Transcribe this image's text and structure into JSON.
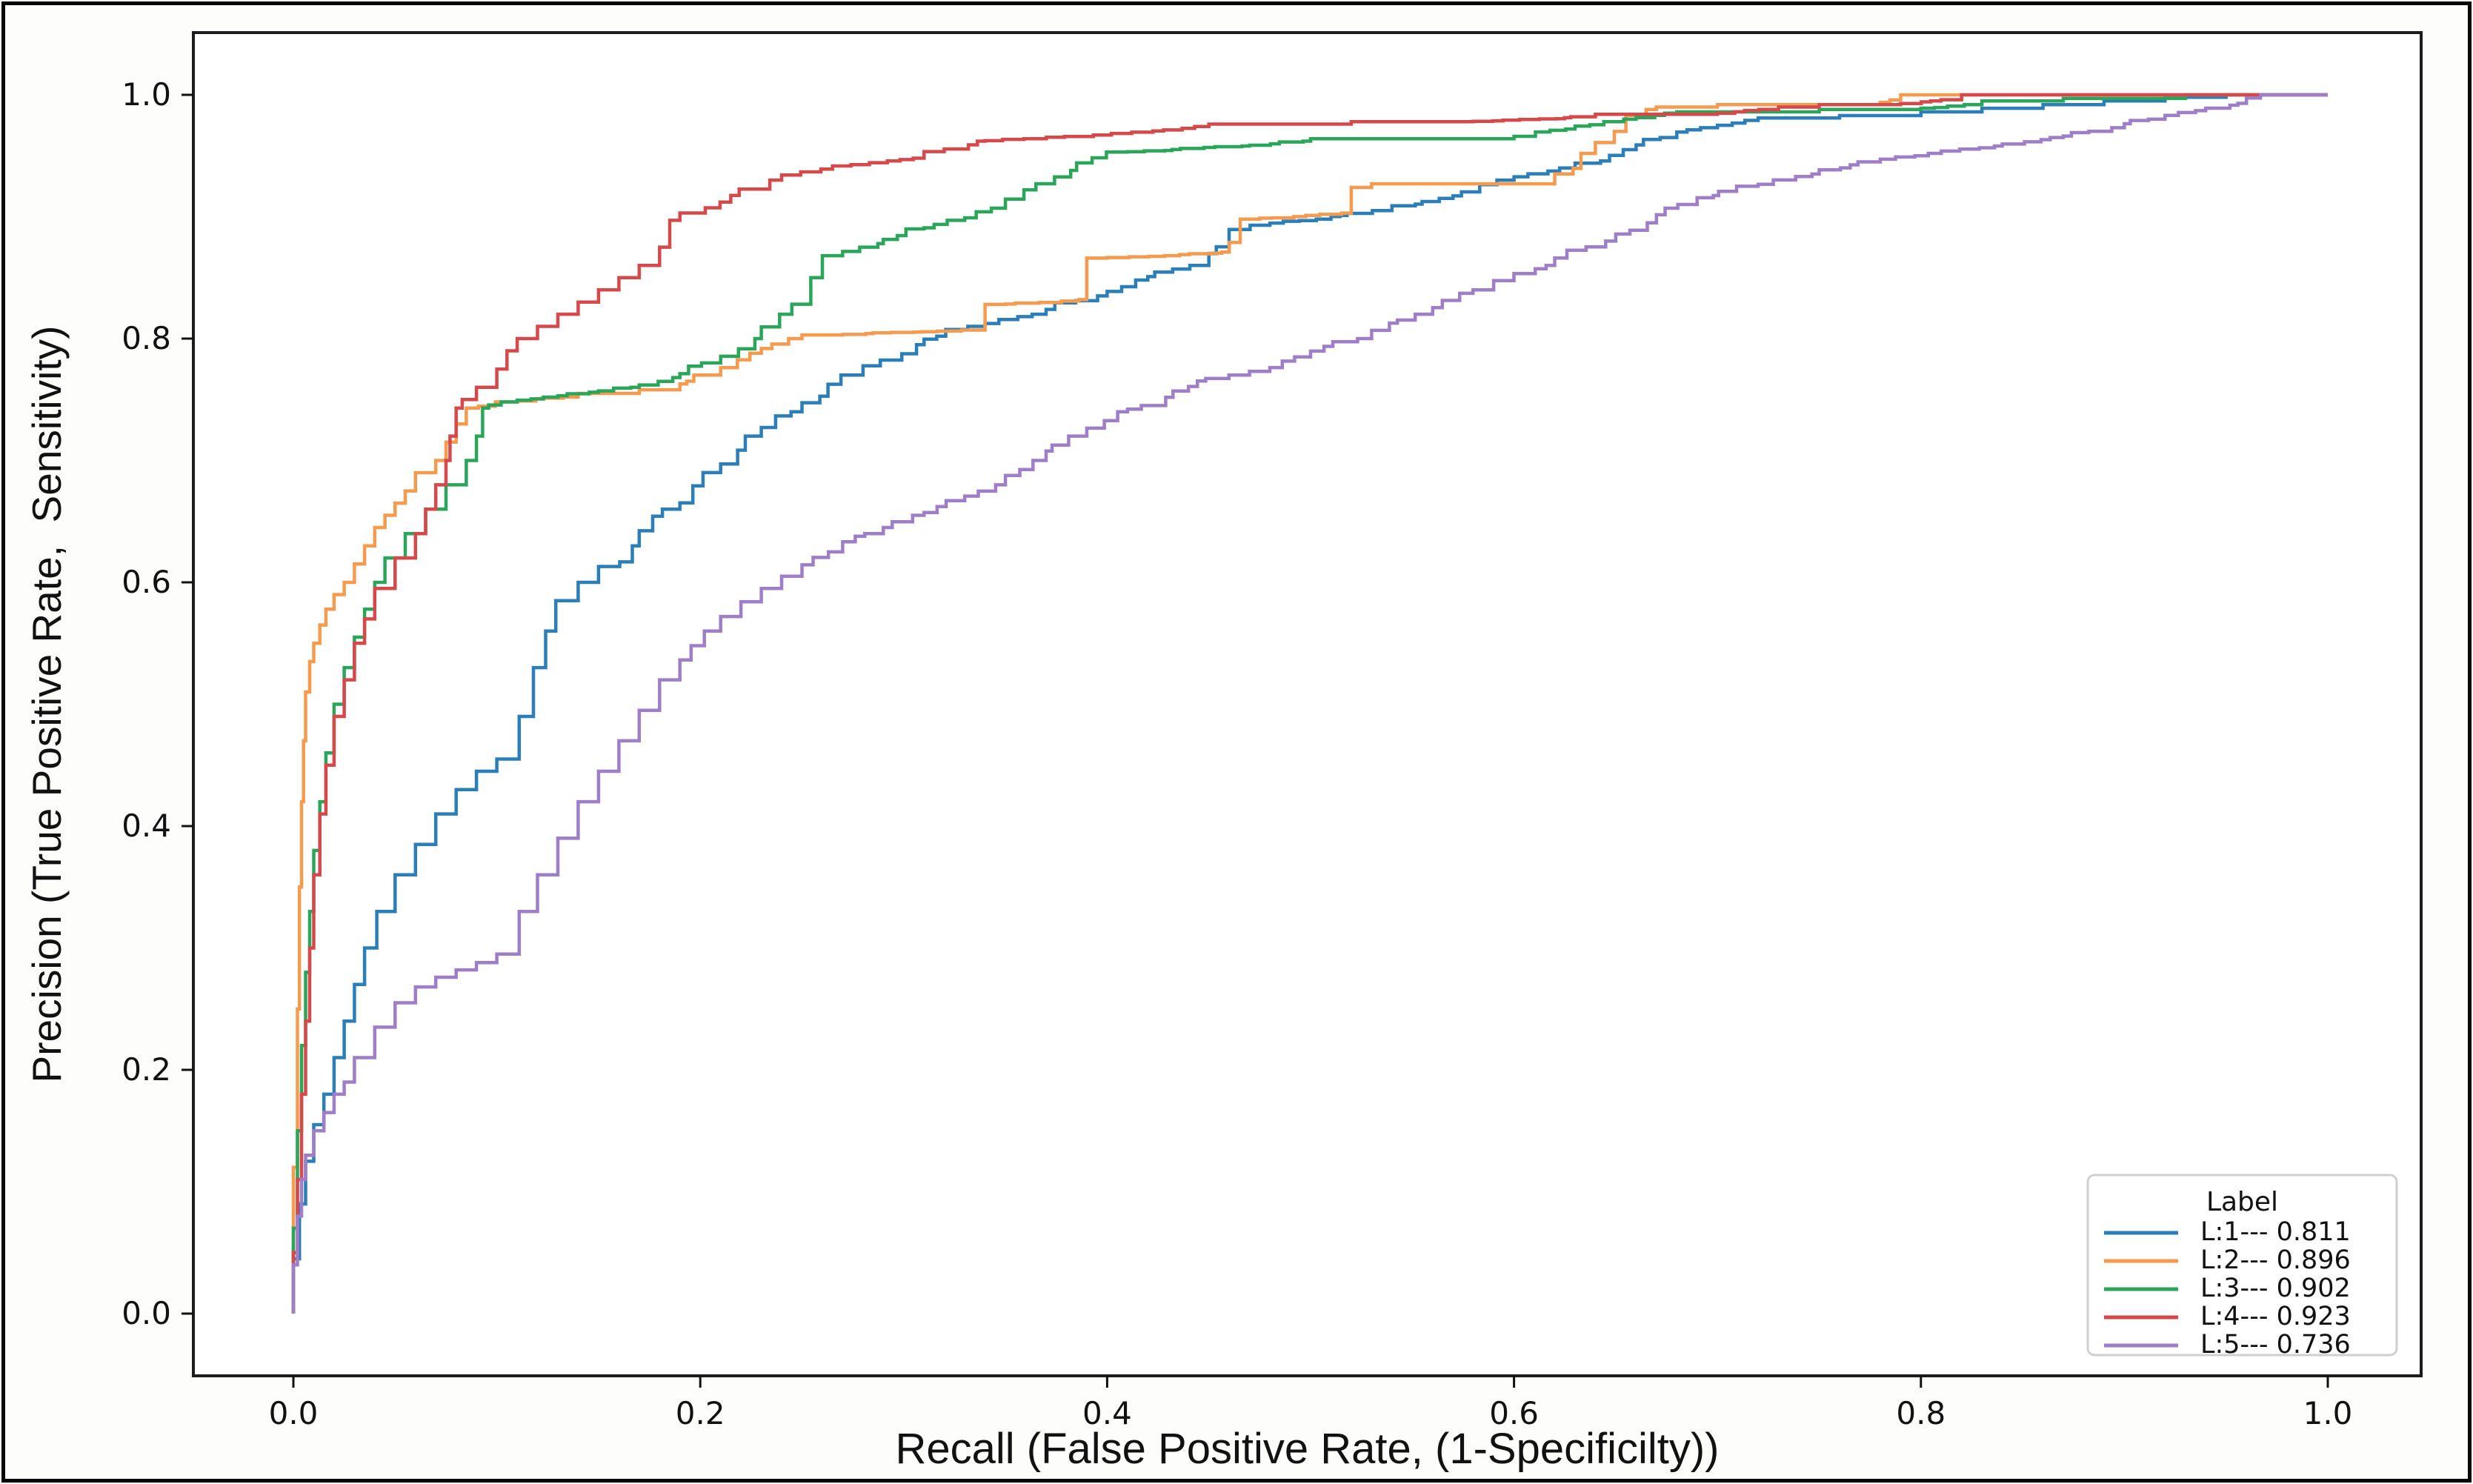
{
  "figure": {
    "background": "#fdfdfc",
    "border_color": "#060606",
    "spine_color": "#1c1c1c",
    "tick_color": "#111111",
    "text_color": "#111111"
  },
  "chart_data": {
    "type": "line",
    "subtype": "roc-step-curves",
    "title": "",
    "xlabel": "Recall (False Positive Rate, (1-Specificilty))",
    "ylabel": "Precision (True Positive Rate,  Sensitivity)",
    "xlim": [
      -0.049,
      1.046
    ],
    "ylim": [
      -0.051,
      1.051
    ],
    "x_ticks": [
      0.0,
      0.2,
      0.4,
      0.6,
      0.8,
      1.0
    ],
    "y_ticks": [
      0.0,
      0.2,
      0.4,
      0.6,
      0.8,
      1.0
    ],
    "grid": false,
    "legend": {
      "title": "Label",
      "position": "lower right",
      "border_color": "#cfcfcf",
      "background": "#ffffff"
    },
    "series": [
      {
        "name": "L:1",
        "auc": 0.811,
        "legend_label": "L:1--- 0.811",
        "color": "#2b7eb8",
        "points": [
          [
            0,
            0
          ],
          [
            0.003,
            0.045
          ],
          [
            0.006,
            0.09
          ],
          [
            0.01,
            0.125
          ],
          [
            0.015,
            0.155
          ],
          [
            0.02,
            0.18
          ],
          [
            0.025,
            0.21
          ],
          [
            0.03,
            0.24
          ],
          [
            0.035,
            0.27
          ],
          [
            0.041,
            0.3
          ],
          [
            0.05,
            0.33
          ],
          [
            0.06,
            0.36
          ],
          [
            0.07,
            0.385
          ],
          [
            0.08,
            0.41
          ],
          [
            0.09,
            0.43
          ],
          [
            0.1,
            0.445
          ],
          [
            0.111,
            0.455
          ],
          [
            0.118,
            0.49
          ],
          [
            0.124,
            0.53
          ],
          [
            0.129,
            0.56
          ],
          [
            0.14,
            0.585
          ],
          [
            0.15,
            0.6
          ],
          [
            0.17,
            0.63
          ],
          [
            0.19,
            0.66
          ],
          [
            0.21,
            0.69
          ],
          [
            0.23,
            0.72
          ],
          [
            0.25,
            0.74
          ],
          [
            0.28,
            0.77
          ],
          [
            0.31,
            0.795
          ],
          [
            0.34,
            0.81
          ],
          [
            0.37,
            0.82
          ],
          [
            0.4,
            0.835
          ],
          [
            0.42,
            0.848
          ],
          [
            0.45,
            0.86
          ],
          [
            0.48,
            0.893
          ],
          [
            0.51,
            0.898
          ],
          [
            0.54,
            0.905
          ],
          [
            0.57,
            0.915
          ],
          [
            0.6,
            0.93
          ],
          [
            0.63,
            0.94
          ],
          [
            0.66,
            0.955
          ],
          [
            0.68,
            0.965
          ],
          [
            0.7,
            0.973
          ],
          [
            0.72,
            0.979
          ],
          [
            0.76,
            0.981
          ],
          [
            0.8,
            0.983
          ],
          [
            0.83,
            0.986
          ],
          [
            0.86,
            0.989
          ],
          [
            0.89,
            0.992
          ],
          [
            0.92,
            0.995
          ],
          [
            0.95,
            0.998
          ],
          [
            0.97,
            1
          ],
          [
            1,
            1
          ]
        ]
      },
      {
        "name": "L:2",
        "auc": 0.896,
        "legend_label": "L:2--- 0.896",
        "color": "#f59b50",
        "points": [
          [
            0,
            0
          ],
          [
            0.002,
            0.12
          ],
          [
            0.003,
            0.25
          ],
          [
            0.004,
            0.35
          ],
          [
            0.005,
            0.42
          ],
          [
            0.006,
            0.47
          ],
          [
            0.008,
            0.51
          ],
          [
            0.01,
            0.535
          ],
          [
            0.013,
            0.55
          ],
          [
            0.016,
            0.565
          ],
          [
            0.02,
            0.578
          ],
          [
            0.025,
            0.59
          ],
          [
            0.03,
            0.6
          ],
          [
            0.035,
            0.615
          ],
          [
            0.04,
            0.63
          ],
          [
            0.045,
            0.645
          ],
          [
            0.05,
            0.655
          ],
          [
            0.055,
            0.665
          ],
          [
            0.06,
            0.675
          ],
          [
            0.07,
            0.69
          ],
          [
            0.075,
            0.7
          ],
          [
            0.08,
            0.715
          ],
          [
            0.085,
            0.73
          ],
          [
            0.091,
            0.743
          ],
          [
            0.11,
            0.748
          ],
          [
            0.14,
            0.752
          ],
          [
            0.17,
            0.755
          ],
          [
            0.19,
            0.758
          ],
          [
            0.21,
            0.77
          ],
          [
            0.23,
            0.788
          ],
          [
            0.25,
            0.8
          ],
          [
            0.27,
            0.803
          ],
          [
            0.34,
            0.807
          ],
          [
            0.35,
            0.828
          ],
          [
            0.39,
            0.832
          ],
          [
            0.4,
            0.866
          ],
          [
            0.46,
            0.871
          ],
          [
            0.475,
            0.898
          ],
          [
            0.52,
            0.903
          ],
          [
            0.53,
            0.924
          ],
          [
            0.62,
            0.927
          ],
          [
            0.64,
            0.952
          ],
          [
            0.655,
            0.97
          ],
          [
            0.67,
            0.988
          ],
          [
            0.7,
            0.99
          ],
          [
            0.78,
            0.992
          ],
          [
            0.8,
            1
          ],
          [
            1,
            1
          ]
        ]
      },
      {
        "name": "L:3",
        "auc": 0.902,
        "legend_label": "L:3--- 0.902",
        "color": "#2ba55a",
        "points": [
          [
            0,
            0
          ],
          [
            0.002,
            0.07
          ],
          [
            0.004,
            0.15
          ],
          [
            0.006,
            0.22
          ],
          [
            0.008,
            0.28
          ],
          [
            0.01,
            0.33
          ],
          [
            0.013,
            0.38
          ],
          [
            0.016,
            0.42
          ],
          [
            0.02,
            0.46
          ],
          [
            0.025,
            0.5
          ],
          [
            0.03,
            0.53
          ],
          [
            0.035,
            0.555
          ],
          [
            0.04,
            0.578
          ],
          [
            0.045,
            0.6
          ],
          [
            0.055,
            0.62
          ],
          [
            0.065,
            0.64
          ],
          [
            0.075,
            0.66
          ],
          [
            0.085,
            0.68
          ],
          [
            0.09,
            0.7
          ],
          [
            0.093,
            0.72
          ],
          [
            0.096,
            0.743
          ],
          [
            0.11,
            0.748
          ],
          [
            0.13,
            0.752
          ],
          [
            0.15,
            0.756
          ],
          [
            0.17,
            0.76
          ],
          [
            0.19,
            0.768
          ],
          [
            0.21,
            0.78
          ],
          [
            0.23,
            0.8
          ],
          [
            0.245,
            0.82
          ],
          [
            0.26,
            0.85
          ],
          [
            0.27,
            0.868
          ],
          [
            0.29,
            0.878
          ],
          [
            0.31,
            0.89
          ],
          [
            0.33,
            0.897
          ],
          [
            0.35,
            0.907
          ],
          [
            0.365,
            0.922
          ],
          [
            0.385,
            0.938
          ],
          [
            0.41,
            0.953
          ],
          [
            0.47,
            0.958
          ],
          [
            0.5,
            0.962
          ],
          [
            0.6,
            0.964
          ],
          [
            0.63,
            0.972
          ],
          [
            0.66,
            0.98
          ],
          [
            0.68,
            0.985
          ],
          [
            0.75,
            0.986
          ],
          [
            0.8,
            0.988
          ],
          [
            0.83,
            0.992
          ],
          [
            0.87,
            0.995
          ],
          [
            0.93,
            0.997
          ],
          [
            0.98,
            1
          ],
          [
            1,
            1
          ]
        ]
      },
      {
        "name": "L:4",
        "auc": 0.923,
        "legend_label": "L:4--- 0.923",
        "color": "#d5494a",
        "points": [
          [
            0,
            0
          ],
          [
            0.002,
            0.05
          ],
          [
            0.004,
            0.11
          ],
          [
            0.006,
            0.18
          ],
          [
            0.008,
            0.24
          ],
          [
            0.01,
            0.3
          ],
          [
            0.013,
            0.36
          ],
          [
            0.016,
            0.41
          ],
          [
            0.02,
            0.45
          ],
          [
            0.025,
            0.49
          ],
          [
            0.03,
            0.52
          ],
          [
            0.035,
            0.55
          ],
          [
            0.04,
            0.57
          ],
          [
            0.05,
            0.595
          ],
          [
            0.06,
            0.62
          ],
          [
            0.065,
            0.64
          ],
          [
            0.07,
            0.66
          ],
          [
            0.075,
            0.68
          ],
          [
            0.077,
            0.7
          ],
          [
            0.08,
            0.72
          ],
          [
            0.083,
            0.743
          ],
          [
            0.09,
            0.75
          ],
          [
            0.1,
            0.76
          ],
          [
            0.105,
            0.775
          ],
          [
            0.11,
            0.79
          ],
          [
            0.12,
            0.8
          ],
          [
            0.13,
            0.81
          ],
          [
            0.14,
            0.82
          ],
          [
            0.15,
            0.83
          ],
          [
            0.16,
            0.84
          ],
          [
            0.17,
            0.85
          ],
          [
            0.18,
            0.86
          ],
          [
            0.185,
            0.875
          ],
          [
            0.19,
            0.897
          ],
          [
            0.215,
            0.912
          ],
          [
            0.24,
            0.93
          ],
          [
            0.265,
            0.939
          ],
          [
            0.31,
            0.948
          ],
          [
            0.34,
            0.962
          ],
          [
            0.45,
            0.974
          ],
          [
            0.52,
            0.976
          ],
          [
            0.58,
            0.978
          ],
          [
            0.64,
            0.982
          ],
          [
            0.7,
            0.984
          ],
          [
            0.73,
            0.988
          ],
          [
            0.75,
            0.99
          ],
          [
            0.79,
            0.992
          ],
          [
            0.82,
            0.996
          ],
          [
            0.83,
            1
          ],
          [
            1,
            1
          ]
        ]
      },
      {
        "name": "L:5",
        "auc": 0.736,
        "legend_label": "L:5--- 0.736",
        "color": "#9f7ec8",
        "points": [
          [
            0,
            0
          ],
          [
            0.002,
            0.04
          ],
          [
            0.004,
            0.08
          ],
          [
            0.006,
            0.11
          ],
          [
            0.01,
            0.13
          ],
          [
            0.015,
            0.15
          ],
          [
            0.02,
            0.165
          ],
          [
            0.025,
            0.18
          ],
          [
            0.03,
            0.19
          ],
          [
            0.04,
            0.21
          ],
          [
            0.05,
            0.235
          ],
          [
            0.06,
            0.255
          ],
          [
            0.07,
            0.268
          ],
          [
            0.08,
            0.276
          ],
          [
            0.09,
            0.282
          ],
          [
            0.1,
            0.288
          ],
          [
            0.111,
            0.295
          ],
          [
            0.12,
            0.33
          ],
          [
            0.13,
            0.36
          ],
          [
            0.14,
            0.39
          ],
          [
            0.15,
            0.42
          ],
          [
            0.16,
            0.445
          ],
          [
            0.17,
            0.47
          ],
          [
            0.18,
            0.495
          ],
          [
            0.19,
            0.52
          ],
          [
            0.202,
            0.548
          ],
          [
            0.21,
            0.56
          ],
          [
            0.22,
            0.572
          ],
          [
            0.23,
            0.584
          ],
          [
            0.24,
            0.595
          ],
          [
            0.25,
            0.605
          ],
          [
            0.27,
            0.625
          ],
          [
            0.29,
            0.64
          ],
          [
            0.31,
            0.655
          ],
          [
            0.33,
            0.667
          ],
          [
            0.35,
            0.68
          ],
          [
            0.37,
            0.7
          ],
          [
            0.39,
            0.72
          ],
          [
            0.41,
            0.74
          ],
          [
            0.44,
            0.757
          ],
          [
            0.47,
            0.77
          ],
          [
            0.5,
            0.785
          ],
          [
            0.53,
            0.8
          ],
          [
            0.56,
            0.82
          ],
          [
            0.59,
            0.84
          ],
          [
            0.62,
            0.86
          ],
          [
            0.65,
            0.88
          ],
          [
            0.67,
            0.895
          ],
          [
            0.69,
            0.91
          ],
          [
            0.72,
            0.925
          ],
          [
            0.75,
            0.935
          ],
          [
            0.78,
            0.945
          ],
          [
            0.81,
            0.952
          ],
          [
            0.84,
            0.958
          ],
          [
            0.87,
            0.965
          ],
          [
            0.9,
            0.973
          ],
          [
            0.92,
            0.98
          ],
          [
            0.94,
            0.987
          ],
          [
            0.96,
            0.993
          ],
          [
            0.975,
            1
          ],
          [
            1,
            1
          ]
        ]
      }
    ]
  }
}
